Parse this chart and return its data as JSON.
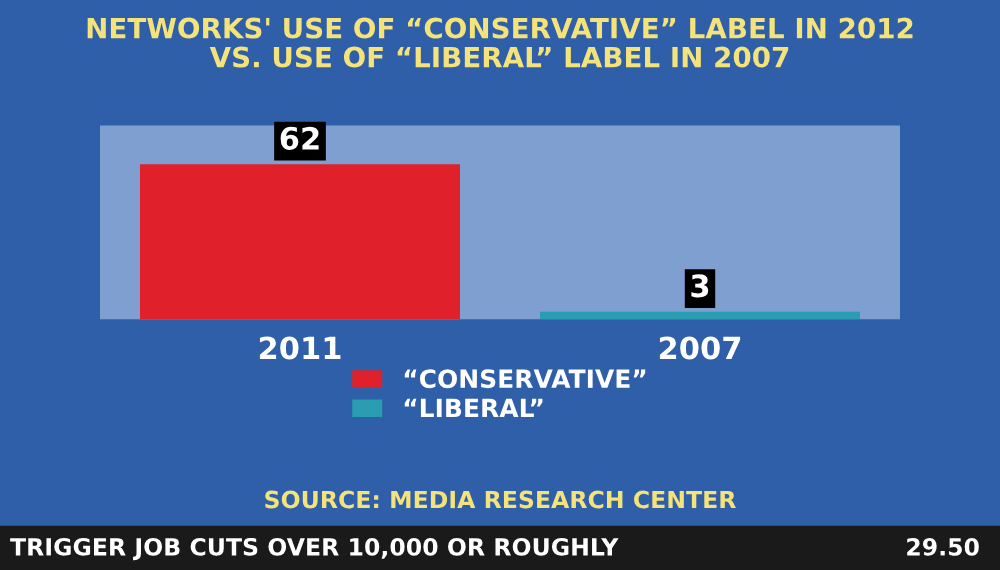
{
  "chart_data": {
    "type": "bar",
    "title": "NETWORKS' USE OF “CONSERVATIVE” LABEL IN 2012\nVS. USE OF “LIBERAL” LABEL IN 2007",
    "categories": [
      "2011",
      "2007"
    ],
    "series": [
      {
        "name": "“CONSERVATIVE”",
        "color": "#e0202a",
        "values": [
          62,
          null
        ]
      },
      {
        "name": "“LIBERAL”",
        "color": "#2a9db0",
        "values": [
          null,
          3
        ]
      }
    ],
    "data_labels": true,
    "legend": "bottom",
    "grid": false,
    "annotations": [
      "SOURCE: MEDIA RESEARCH CENTER",
      "TRIGGER JOB CUTS OVER 10,000 OR ROUGHLY",
      "29.50"
    ]
  }
}
